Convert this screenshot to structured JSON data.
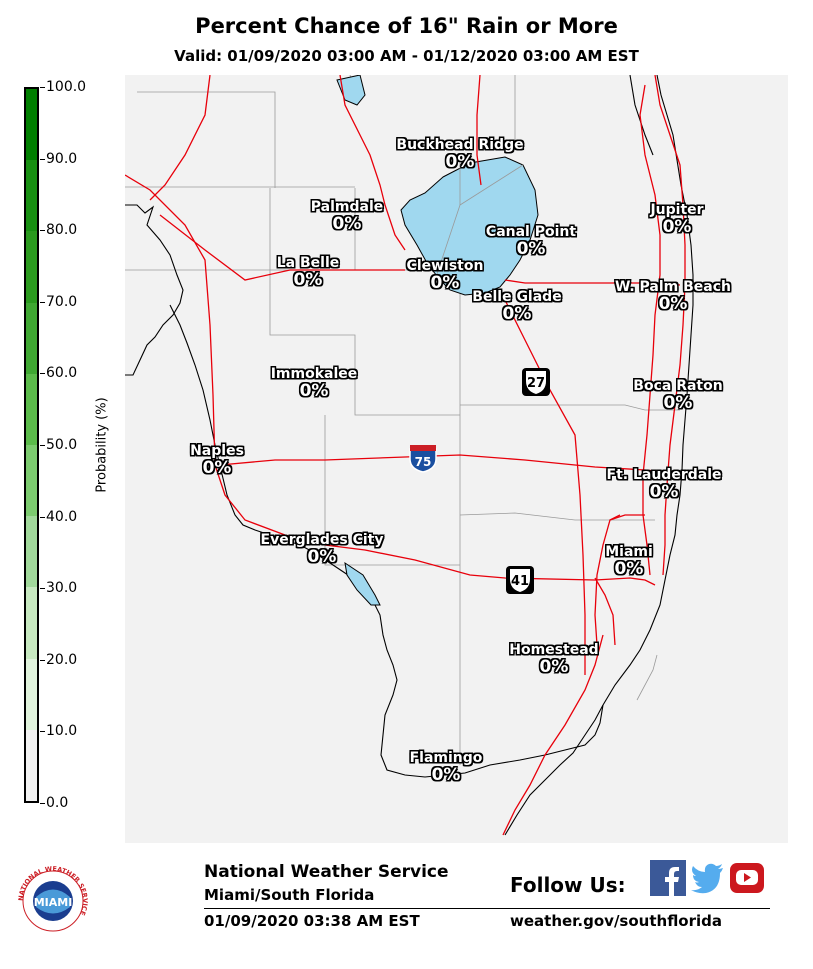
{
  "header": {
    "title": "Percent Chance of 16\" Rain or More",
    "valid": "Valid: 01/09/2020 03:00 AM - 01/12/2020 03:00 AM EST"
  },
  "colorbar": {
    "title": "Probability (%)",
    "ticks": [
      "100.0",
      "90.0",
      "80.0",
      "70.0",
      "60.0",
      "50.0",
      "40.0",
      "30.0",
      "20.0",
      "10.0",
      "0.0"
    ],
    "colors": [
      "#f2f2f2",
      "#e0f3dc",
      "#c7e9c0",
      "#a1d99b",
      "#7ccb6f",
      "#5bbb4a",
      "#3fa832",
      "#2a9a1e",
      "#189012",
      "#007f00"
    ]
  },
  "cities": [
    {
      "name": "Buckhead Ridge",
      "value": "0%"
    },
    {
      "name": "Palmdale",
      "value": "0%"
    },
    {
      "name": "Canal Point",
      "value": "0%"
    },
    {
      "name": "Jupiter",
      "value": "0%"
    },
    {
      "name": "La Belle",
      "value": "0%"
    },
    {
      "name": "Clewiston",
      "value": "0%"
    },
    {
      "name": "Belle Glade",
      "value": "0%"
    },
    {
      "name": "W. Palm Beach",
      "value": "0%"
    },
    {
      "name": "Immokalee",
      "value": "0%"
    },
    {
      "name": "Boca Raton",
      "value": "0%"
    },
    {
      "name": "Naples",
      "value": "0%"
    },
    {
      "name": "Ft. Lauderdale",
      "value": "0%"
    },
    {
      "name": "Everglades City",
      "value": "0%"
    },
    {
      "name": "Miami",
      "value": "0%"
    },
    {
      "name": "Homestead",
      "value": "0%"
    },
    {
      "name": "Flamingo",
      "value": "0%"
    }
  ],
  "shields": {
    "us27": "27",
    "i75": "75",
    "us41": "41"
  },
  "footer": {
    "agency": "National Weather Service",
    "office": "Miami/South Florida",
    "issued": "01/09/2020 03:38 AM EST",
    "follow": "Follow Us:",
    "url": "weather.gov/southflorida",
    "logo_text": "MIAMI",
    "logo_ring": "NATIONAL WEATHER SERVICE"
  }
}
